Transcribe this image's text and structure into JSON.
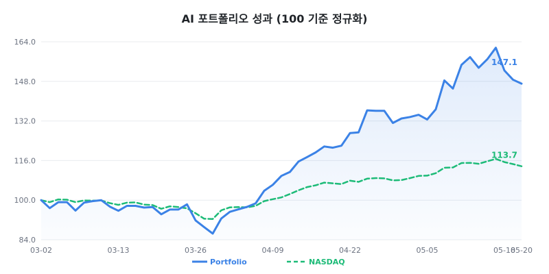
{
  "chart_data": {
    "type": "line",
    "title": "AI 포트폴리오 성과 (100 기준 정규화)",
    "xlabel": "",
    "ylabel": "",
    "ylim": [
      84,
      164
    ],
    "yticks": [
      "84.0",
      "100.0",
      "116.0",
      "132.0",
      "148.0",
      "164.0"
    ],
    "ytick_values": [
      84,
      100,
      116,
      132,
      148,
      164
    ],
    "xticks": [
      {
        "index": 0,
        "label": "03-02"
      },
      {
        "index": 9,
        "label": "03-13"
      },
      {
        "index": 18,
        "label": "03-26"
      },
      {
        "index": 27,
        "label": "04-09"
      },
      {
        "index": 36,
        "label": "04-22"
      },
      {
        "index": 45,
        "label": "05-05"
      },
      {
        "index": 54,
        "label": "05-18"
      },
      {
        "index": 56,
        "label": "05-20"
      }
    ],
    "grid": true,
    "legend_position": "bottom",
    "colors": {
      "portfolio": "#3b82e6",
      "nasdaq": "#1dbb78"
    },
    "series": [
      {
        "name": "Portfolio",
        "style": "solid",
        "end_label": "147.1",
        "values": [
          100,
          96.8,
          99.2,
          99.2,
          95.8,
          99,
          99.6,
          100,
          97.4,
          95.7,
          97.7,
          97.7,
          97,
          97.2,
          94.3,
          96.2,
          96.2,
          98.3,
          91.8,
          89.1,
          86.5,
          92.6,
          95.3,
          96.3,
          97.3,
          98.7,
          103.8,
          106.2,
          109.8,
          111.4,
          115.6,
          117.4,
          119.3,
          121.7,
          121.2,
          122,
          127.1,
          127.4,
          136.3,
          136.1,
          136.1,
          131.2,
          133,
          133.6,
          134.5,
          132.6,
          136.7,
          148.4,
          145.1,
          154.7,
          157.8,
          153.5,
          156.9,
          161.6,
          152.4,
          148.7,
          147.1
        ]
      },
      {
        "name": "NASDAQ",
        "style": "dashed",
        "end_label": "113.7",
        "values": [
          100,
          99.2,
          100.3,
          100.2,
          99.2,
          99.9,
          99.8,
          99.9,
          98.8,
          98.1,
          99,
          99.1,
          98.2,
          98,
          96.5,
          97.5,
          97.2,
          96.7,
          94.7,
          92.5,
          92.4,
          95.9,
          97.1,
          97.2,
          97.1,
          97.7,
          99.6,
          100.4,
          101.1,
          102.5,
          104,
          105.3,
          106,
          107.1,
          106.8,
          106.5,
          107.9,
          107.4,
          108.7,
          108.9,
          108.8,
          108,
          108.1,
          108.9,
          109.8,
          109.9,
          110.9,
          113.1,
          113.2,
          115,
          115.1,
          114.7,
          115.7,
          116.7,
          115.4,
          114.6,
          113.7
        ]
      }
    ]
  }
}
